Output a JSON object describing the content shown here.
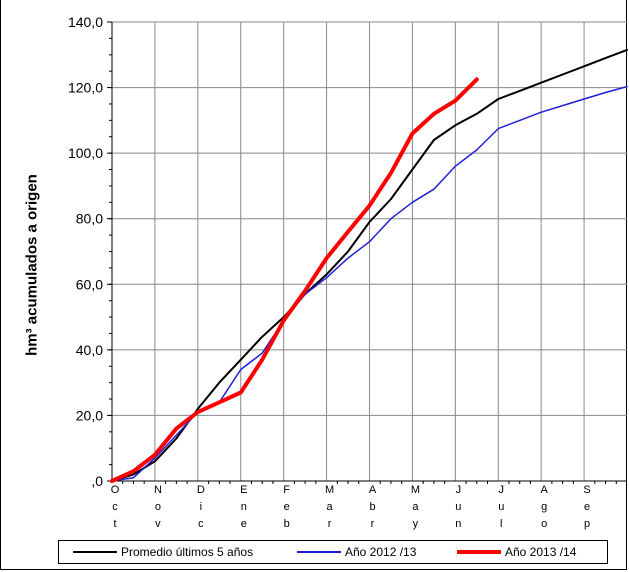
{
  "chart_data": {
    "type": "line",
    "title": "",
    "ylabel": "hm³ acumulados a origen",
    "xlabel": "",
    "ylim": [
      0,
      140
    ],
    "yticks": [
      0,
      20,
      40,
      60,
      80,
      100,
      120,
      140
    ],
    "ytick_labels": [
      ",0",
      "20,0",
      "40,0",
      "60,0",
      "80,0",
      "100,0",
      "120,0",
      "140,0"
    ],
    "x_unit": "month index (0 = start of Oct, 12 = end of Sep)",
    "xlim": [
      0,
      12
    ],
    "months": [
      "Oct",
      "Nov",
      "Dic",
      "Ene",
      "Feb",
      "Mar",
      "Abr",
      "May",
      "Jun",
      "Jul",
      "Ago",
      "Sep"
    ],
    "grid": true,
    "legend_position": "bottom",
    "series": [
      {
        "name": "Promedio últimos 5 años",
        "color": "#000000",
        "width": 2,
        "x": [
          0,
          0.5,
          1.0,
          1.5,
          2.0,
          2.5,
          3.0,
          3.5,
          4.0,
          4.5,
          5.0,
          5.5,
          6.0,
          6.5,
          7.0,
          7.5,
          8.0,
          8.5,
          9.0,
          9.5,
          10.0,
          10.5,
          11.0,
          11.5,
          12.0
        ],
        "y": [
          0,
          2,
          6,
          13,
          22,
          30,
          37,
          44,
          50,
          57,
          63,
          70,
          79,
          86,
          95,
          104,
          108.5,
          112,
          116.5,
          119,
          121.5,
          124,
          126.5,
          129,
          131.5
        ]
      },
      {
        "name": "Año 2012 /13",
        "color": "#1f1fd8",
        "width": 1.5,
        "x": [
          0,
          0.5,
          1.0,
          1.5,
          2.0,
          2.5,
          3.0,
          3.5,
          4.0,
          4.5,
          5.0,
          5.5,
          6.0,
          6.5,
          7.0,
          7.5,
          8.0,
          8.5,
          9.0,
          9.5,
          10.0,
          10.5,
          11.0,
          11.5,
          12.0
        ],
        "y": [
          0,
          1,
          7,
          14,
          21,
          24,
          34,
          39,
          49,
          57,
          62,
          68,
          73,
          80,
          85,
          89,
          96,
          101,
          107.5,
          110,
          112.5,
          114.5,
          116.5,
          118.5,
          120.3
        ]
      },
      {
        "name": "Año 2013 /14",
        "color": "#ff0000",
        "width": 4,
        "x": [
          0,
          0.5,
          1.0,
          1.5,
          2.0,
          2.5,
          3.0,
          3.5,
          4.0,
          4.5,
          5.0,
          5.5,
          6.0,
          6.5,
          7.0,
          7.5,
          8.0,
          8.5
        ],
        "y": [
          0,
          3,
          8,
          16,
          21,
          24,
          27,
          37,
          49,
          58,
          68,
          76,
          84,
          94,
          106,
          112,
          116,
          122.5
        ]
      }
    ]
  }
}
